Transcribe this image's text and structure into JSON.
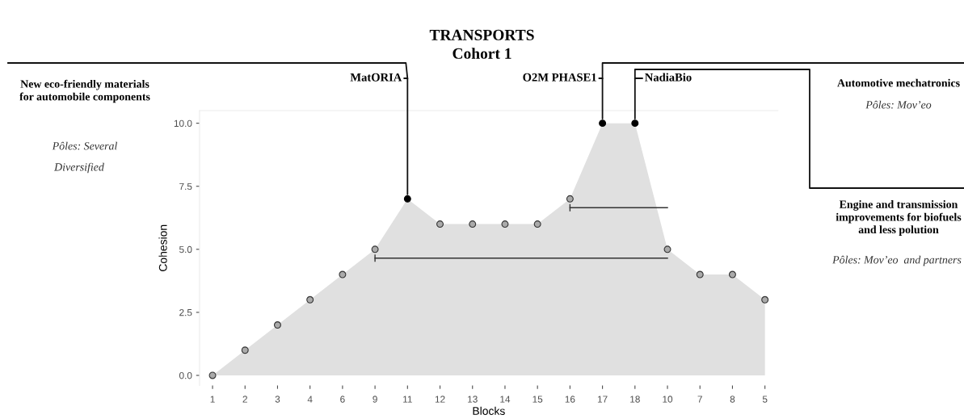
{
  "chart_data": {
    "type": "area",
    "title": "TRANSPORTS",
    "subtitle": "Cohort 1",
    "xlabel": "Blocks",
    "ylabel": "Cohesion",
    "categories": [
      "1",
      "2",
      "3",
      "4",
      "6",
      "9",
      "11",
      "12",
      "13",
      "14",
      "15",
      "16",
      "17",
      "18",
      "10",
      "7",
      "8",
      "5"
    ],
    "series": [
      {
        "type": "area",
        "color": "#e0e0e0",
        "values": [
          0,
          1,
          2,
          3,
          4,
          5,
          7,
          6,
          6,
          6,
          6,
          7,
          10,
          10,
          5,
          4,
          4,
          3
        ]
      },
      {
        "type": "scatter",
        "marker": "circle",
        "colors": [
          "#aaaaaa",
          "#aaaaaa",
          "#aaaaaa",
          "#aaaaaa",
          "#aaaaaa",
          "#aaaaaa",
          "#000000",
          "#aaaaaa",
          "#aaaaaa",
          "#aaaaaa",
          "#aaaaaa",
          "#aaaaaa",
          "#000000",
          "#000000",
          "#aaaaaa",
          "#aaaaaa",
          "#aaaaaa",
          "#aaaaaa"
        ],
        "values": [
          0,
          1,
          2,
          3,
          4,
          5,
          7,
          6,
          6,
          6,
          6,
          7,
          10,
          10,
          5,
          4,
          4,
          3
        ]
      },
      {
        "type": "line",
        "color": "#333333",
        "x": [
          "9",
          "10"
        ],
        "values": [
          4.65,
          4.65
        ]
      },
      {
        "type": "line",
        "color": "#333333",
        "x": [
          "16",
          "10"
        ],
        "values": [
          6.65,
          6.65
        ]
      }
    ],
    "ylim": [
      -0.4,
      10.5
    ],
    "yticks": [
      {
        "value": 0,
        "label": "0.0"
      },
      {
        "value": 2.5,
        "label": "2.5"
      },
      {
        "value": 5,
        "label": "5.0"
      },
      {
        "value": 7.5,
        "label": "7.5"
      },
      {
        "value": 10,
        "label": "10.0"
      }
    ],
    "grid": false,
    "legend": false,
    "annotations": [
      "New eco-friendly materials\nfor automobile components",
      "Pôles: Several",
      "Diversified",
      "Automotive mechatronics",
      "Pôles: Mov’eo",
      "Engine and transmission\nimprovements for biofuels\nand less polution",
      "Pôles: Mov’eo  and partners",
      {
        "text": "MatORIA",
        "x": "11",
        "y": 7
      },
      {
        "text": "O2M PHASE1",
        "x": "17",
        "y": 10
      },
      {
        "text": "NadiaBio",
        "x": "18",
        "y": 10
      }
    ]
  }
}
